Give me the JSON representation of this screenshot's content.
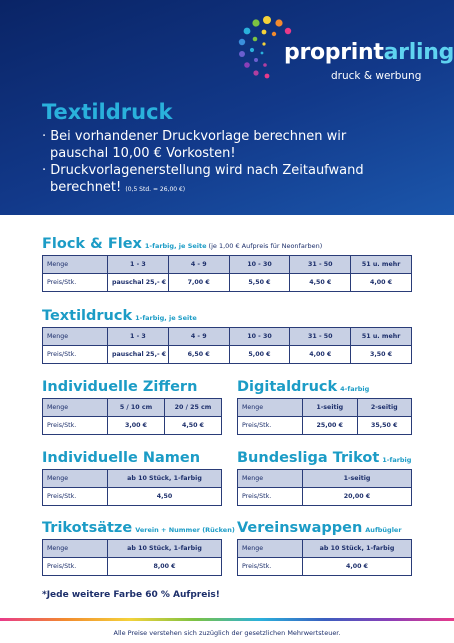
{
  "header": {
    "brand_a": "proprint",
    "brand_b": "arling",
    "tagline": "druck & werbung",
    "title": "Textildruck",
    "bullets": [
      {
        "text": "· Bei vorhandener Druckvorlage berechnen wir pauschal 10,00 € Vorkosten!"
      },
      {
        "text": "· Druckvorlagenerstellung wird nach Zeitaufwand berechnet!",
        "small": "(0,5 Std. = 26,00 €)"
      }
    ]
  },
  "sections": [
    {
      "title": "Flock & Flex",
      "subtitle": "1-farbig, je Seite",
      "note": "(je 1,00 € Aufpreis für Neonfarben)",
      "rows": [
        [
          "Menge",
          "1 - 3",
          "4 - 9",
          "10 - 30",
          "31 - 50",
          "51 u. mehr"
        ],
        [
          "Preis/Stk.",
          "pauschal 25,- €",
          "7,00 €",
          "5,50 €",
          "4,50 €",
          "4,00 €"
        ]
      ]
    },
    {
      "title": "Textildruck",
      "subtitle": "1-farbig, je Seite",
      "rows": [
        [
          "Menge",
          "1 - 3",
          "4 - 9",
          "10 - 30",
          "31 - 50",
          "51 u. mehr"
        ],
        [
          "Preis/Stk.",
          "pauschal 25,- €",
          "6,50 €",
          "5,00 €",
          "4,00 €",
          "3,50 €"
        ]
      ]
    },
    {
      "title": "Individuelle Ziffern",
      "rows": [
        [
          "Menge",
          "5 / 10 cm",
          "20 / 25 cm"
        ],
        [
          "Preis/Stk.",
          "3,00 €",
          "4,50 €"
        ]
      ]
    },
    {
      "title": "Digitaldruck",
      "subtitle": "4-farbig",
      "rows": [
        [
          "Menge",
          "1-seitig",
          "2-seitig"
        ],
        [
          "Preis/Stk.",
          "25,00 €",
          "35,50 €"
        ]
      ]
    },
    {
      "title": "Individuelle Namen",
      "rows": [
        [
          "Menge",
          "ab 10 Stück, 1-farbig"
        ],
        [
          "Preis/Stk.",
          "4,50"
        ]
      ]
    },
    {
      "title": "Bundesliga Trikot",
      "subtitle": "1-farbig",
      "rows": [
        [
          "Menge",
          "1-seitig"
        ],
        [
          "Preis/Stk.",
          "20,00 €"
        ]
      ]
    },
    {
      "title": "Trikotsätze",
      "subtitle": "Verein + Nummer (Rücken)",
      "rows": [
        [
          "Menge",
          "ab 10 Stück, 1-farbig"
        ],
        [
          "Preis/Stk.",
          "8,00 €"
        ]
      ]
    },
    {
      "title": "Vereinswappen",
      "subtitle": "Aufbügler",
      "rows": [
        [
          "Menge",
          "ab 10 Stück, 1-farbig"
        ],
        [
          "Preis/Stk.",
          "4,00 €"
        ]
      ]
    }
  ],
  "footnote": "*Jede weitere Farbe 60 % Aufpreis!",
  "footer": "Alle Preise verstehen sich zuzüglich der gesetzlichen Mehrwertsteuer."
}
